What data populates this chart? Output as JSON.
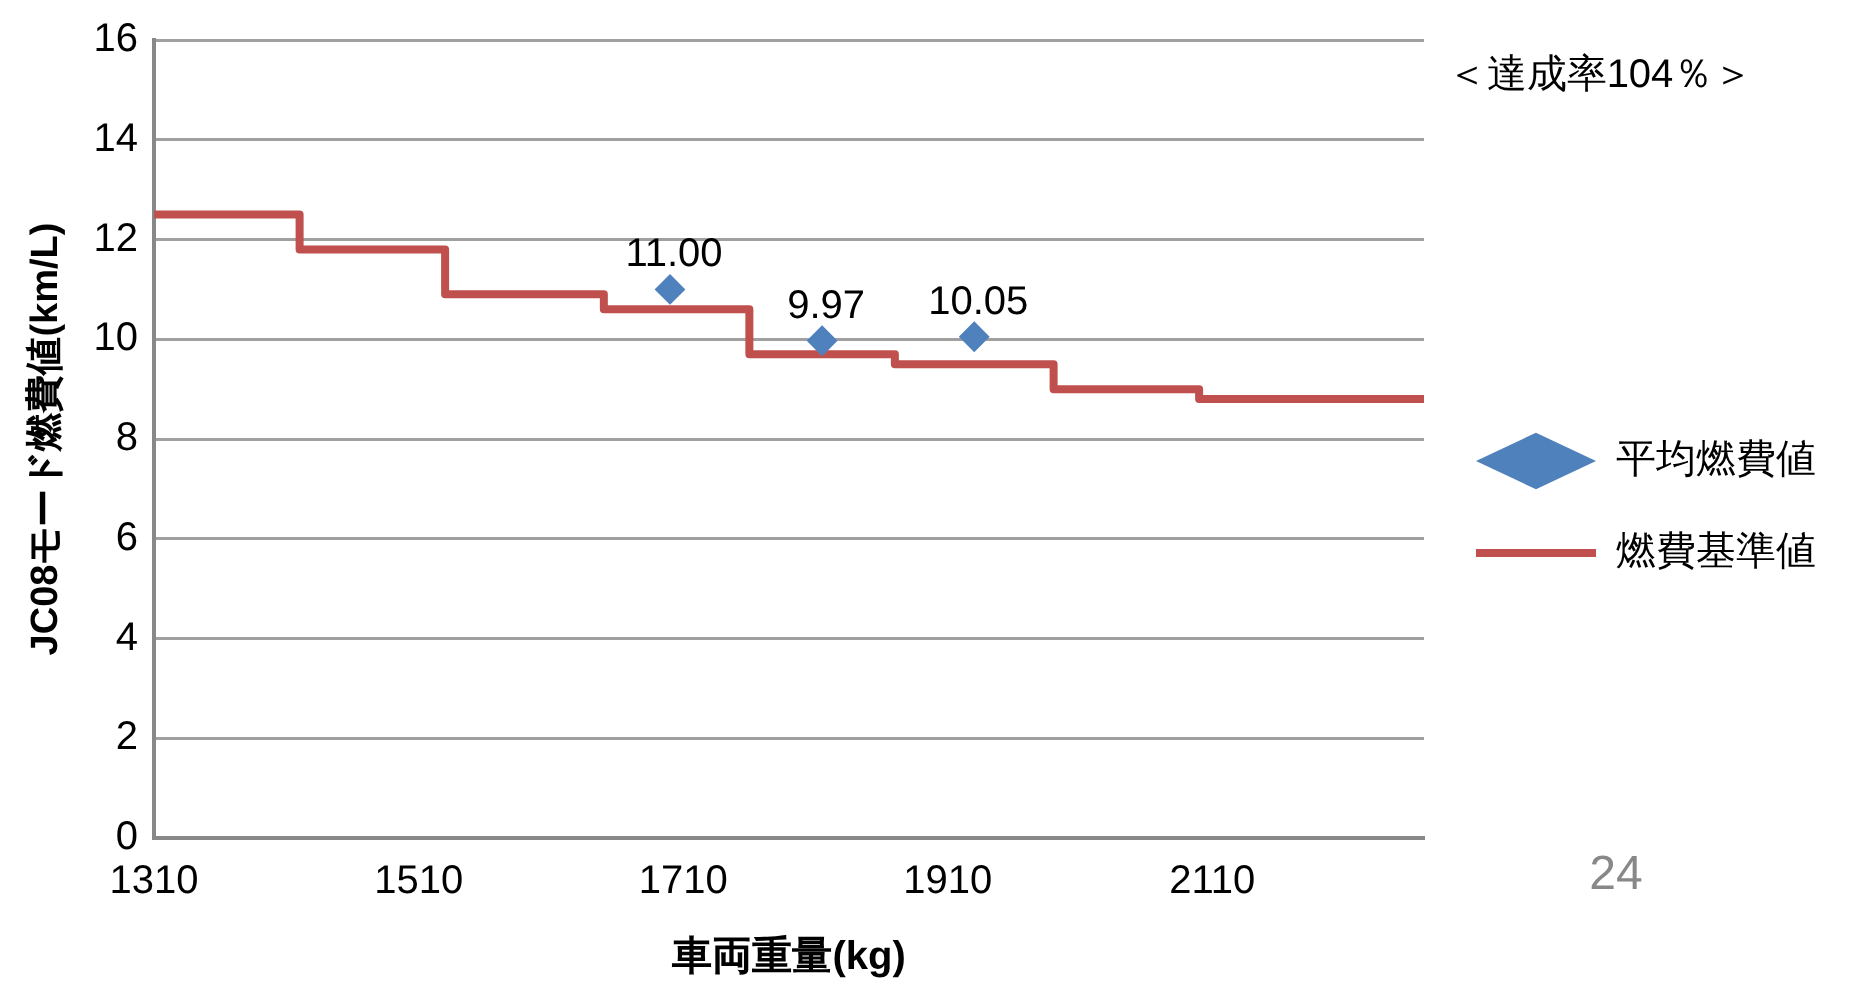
{
  "chart_data": {
    "type": "scatter",
    "xlabel": "車両重量(kg)",
    "ylabel": "JC08モード燃費値(km/L)",
    "xlim": [
      1310,
      2270
    ],
    "xticks": [
      1310,
      1510,
      1710,
      1910,
      2110
    ],
    "ylim": [
      0,
      16
    ],
    "yticks": [
      0,
      2,
      4,
      6,
      8,
      10,
      12,
      14,
      16
    ],
    "grid": "y",
    "legend": "right",
    "annotations": [
      "＜達成率104％＞",
      "24"
    ],
    "series": [
      {
        "name": "平均燃費値",
        "type": "scatter",
        "marker": "diamond",
        "color": "#4f81bd",
        "x": [
          1700,
          1815,
          1930
        ],
        "values": [
          11,
          9.97,
          10.05
        ],
        "value_labels": [
          "11.00",
          "9.97",
          "10.05"
        ]
      },
      {
        "name": "燃費基準値",
        "type": "step",
        "marker": "none",
        "color": "#c0504d",
        "x": [
          1310,
          1420,
          1530,
          1650,
          1760,
          1870,
          1990,
          2100,
          2270
        ],
        "values": [
          12.5,
          11.8,
          10.9,
          10.6,
          9.7,
          9.5,
          9.0,
          8.8,
          8.8
        ]
      }
    ]
  }
}
